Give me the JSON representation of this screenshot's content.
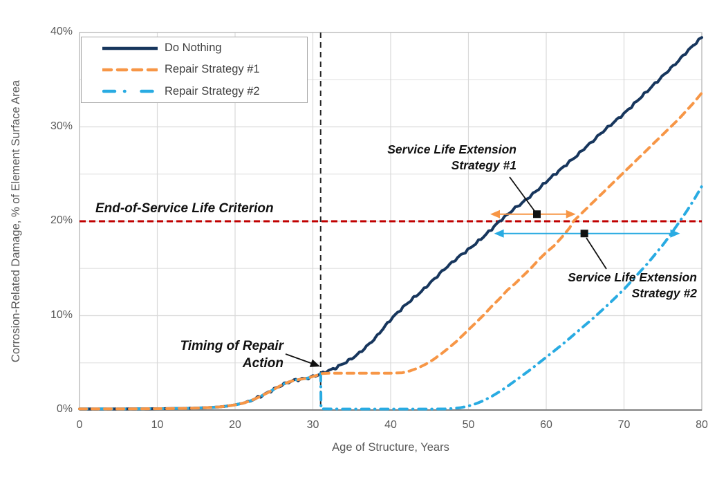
{
  "chart_data": {
    "type": "line",
    "title": "",
    "xlabel": "Age of Structure, Years",
    "ylabel": "Corrosion-Related Damage, % of Element Surface Area",
    "xlim": [
      0,
      80
    ],
    "ylim": [
      0,
      40
    ],
    "grid": "on",
    "legend_position": "top-left",
    "x_tick_values": [
      0,
      10,
      20,
      30,
      40,
      50,
      60,
      70,
      80
    ],
    "x_tick_labels": [
      "0",
      "10",
      "20",
      "30",
      "40",
      "50",
      "60",
      "70",
      "80"
    ],
    "y_tick_values": [
      0,
      10,
      20,
      30,
      40
    ],
    "y_tick_labels": [
      "0%",
      "10%",
      "20%",
      "30%",
      "40%"
    ],
    "series": [
      {
        "name": "Do Nothing",
        "color": "#17365D",
        "style": "solid",
        "wiggle": true,
        "points": [
          [
            0,
            0.12
          ],
          [
            6,
            0.12
          ],
          [
            10,
            0.14
          ],
          [
            13,
            0.17
          ],
          [
            15,
            0.2
          ],
          [
            17,
            0.28
          ],
          [
            18,
            0.33
          ],
          [
            19,
            0.42
          ],
          [
            20,
            0.55
          ],
          [
            21,
            0.72
          ],
          [
            22,
            0.98
          ],
          [
            23,
            1.35
          ],
          [
            24,
            1.75
          ],
          [
            25,
            2.2
          ],
          [
            26,
            2.65
          ],
          [
            27,
            3.0
          ],
          [
            27.8,
            3.18
          ],
          [
            28.6,
            3.28
          ],
          [
            29.4,
            3.4
          ],
          [
            30,
            3.55
          ],
          [
            30.6,
            3.7
          ],
          [
            31,
            3.85
          ],
          [
            32,
            4.15
          ],
          [
            33,
            4.5
          ],
          [
            34,
            4.95
          ],
          [
            35,
            5.45
          ],
          [
            36,
            6.05
          ],
          [
            37,
            6.8
          ],
          [
            38,
            7.6
          ],
          [
            39,
            8.6
          ],
          [
            40,
            9.6
          ],
          [
            41,
            10.4
          ],
          [
            42,
            11.2
          ],
          [
            43,
            11.9
          ],
          [
            44,
            12.6
          ],
          [
            45,
            13.4
          ],
          [
            46,
            14.2
          ],
          [
            47,
            15.0
          ],
          [
            48,
            15.7
          ],
          [
            49,
            16.4
          ],
          [
            50,
            17.0
          ],
          [
            51,
            17.7
          ],
          [
            52,
            18.4
          ],
          [
            53,
            19.2
          ],
          [
            54,
            20.0
          ],
          [
            55,
            20.7
          ],
          [
            56,
            21.4
          ],
          [
            57,
            22.0
          ],
          [
            58,
            22.7
          ],
          [
            59,
            23.4
          ],
          [
            60,
            24.2
          ],
          [
            61,
            24.9
          ],
          [
            62,
            25.6
          ],
          [
            63,
            26.3
          ],
          [
            64,
            27.0
          ],
          [
            65,
            27.8
          ],
          [
            66,
            28.5
          ],
          [
            67,
            29.3
          ],
          [
            68,
            30.0
          ],
          [
            69,
            30.7
          ],
          [
            70,
            31.4
          ],
          [
            71,
            32.2
          ],
          [
            72,
            33.0
          ],
          [
            73,
            33.8
          ],
          [
            74,
            34.6
          ],
          [
            75,
            35.4
          ],
          [
            76,
            36.2
          ],
          [
            77,
            37.0
          ],
          [
            78,
            37.9
          ],
          [
            79,
            38.7
          ],
          [
            80,
            39.5
          ]
        ]
      },
      {
        "name": "Repair Strategy #1",
        "color": "#F79646",
        "style": "dashed",
        "wiggle": false,
        "points": [
          [
            0,
            0.12
          ],
          [
            6,
            0.12
          ],
          [
            10,
            0.14
          ],
          [
            13,
            0.17
          ],
          [
            15,
            0.2
          ],
          [
            17,
            0.28
          ],
          [
            18,
            0.33
          ],
          [
            19,
            0.42
          ],
          [
            20,
            0.55
          ],
          [
            21,
            0.72
          ],
          [
            22,
            0.98
          ],
          [
            23,
            1.35
          ],
          [
            24,
            1.75
          ],
          [
            25,
            2.2
          ],
          [
            26,
            2.65
          ],
          [
            27,
            3.0
          ],
          [
            27.8,
            3.18
          ],
          [
            28.6,
            3.28
          ],
          [
            29.4,
            3.4
          ],
          [
            30,
            3.55
          ],
          [
            30.6,
            3.7
          ],
          [
            31,
            3.85
          ],
          [
            32,
            3.9
          ],
          [
            34,
            3.9
          ],
          [
            36,
            3.9
          ],
          [
            38,
            3.9
          ],
          [
            40,
            3.9
          ],
          [
            41.5,
            3.95
          ],
          [
            42.5,
            4.15
          ],
          [
            43.5,
            4.45
          ],
          [
            44.5,
            4.85
          ],
          [
            45.5,
            5.35
          ],
          [
            46.5,
            5.95
          ],
          [
            47.5,
            6.6
          ],
          [
            48.5,
            7.3
          ],
          [
            50,
            8.5
          ],
          [
            51,
            9.3
          ],
          [
            52,
            10.1
          ],
          [
            53,
            11.0
          ],
          [
            54,
            11.8
          ],
          [
            55,
            12.7
          ],
          [
            56,
            13.4
          ],
          [
            57,
            14.2
          ],
          [
            58,
            15.0
          ],
          [
            59,
            15.9
          ],
          [
            60,
            16.7
          ],
          [
            61,
            17.4
          ],
          [
            62,
            18.3
          ],
          [
            63,
            19.3
          ],
          [
            63.5,
            20.0
          ],
          [
            64,
            20.4
          ],
          [
            65,
            21.2
          ],
          [
            66,
            22.0
          ],
          [
            67,
            22.8
          ],
          [
            68,
            23.6
          ],
          [
            69,
            24.4
          ],
          [
            70,
            25.2
          ],
          [
            71,
            26.0
          ],
          [
            72,
            26.8
          ],
          [
            73,
            27.6
          ],
          [
            74,
            28.4
          ],
          [
            75,
            29.2
          ],
          [
            76,
            30.0
          ],
          [
            77,
            30.8
          ],
          [
            78,
            31.7
          ],
          [
            79,
            32.6
          ],
          [
            80,
            33.6
          ]
        ]
      },
      {
        "name": "Repair Strategy #2",
        "color": "#29ABE2",
        "style": "dashdot",
        "wiggle": false,
        "points": [
          [
            0,
            0.12
          ],
          [
            6,
            0.12
          ],
          [
            10,
            0.14
          ],
          [
            13,
            0.17
          ],
          [
            15,
            0.2
          ],
          [
            17,
            0.28
          ],
          [
            18,
            0.33
          ],
          [
            19,
            0.42
          ],
          [
            20,
            0.55
          ],
          [
            21,
            0.72
          ],
          [
            22,
            0.98
          ],
          [
            23,
            1.35
          ],
          [
            24,
            1.75
          ],
          [
            25,
            2.2
          ],
          [
            26,
            2.65
          ],
          [
            27,
            3.0
          ],
          [
            27.8,
            3.18
          ],
          [
            28.6,
            3.28
          ],
          [
            29.4,
            3.4
          ],
          [
            30,
            3.55
          ],
          [
            30.6,
            3.7
          ],
          [
            31,
            3.85
          ],
          [
            31.05,
            0.12
          ],
          [
            34,
            0.1
          ],
          [
            38,
            0.1
          ],
          [
            42,
            0.1
          ],
          [
            45,
            0.1
          ],
          [
            47,
            0.12
          ],
          [
            48,
            0.16
          ],
          [
            49,
            0.25
          ],
          [
            50,
            0.42
          ],
          [
            51,
            0.68
          ],
          [
            52,
            1.02
          ],
          [
            53,
            1.45
          ],
          [
            54,
            1.95
          ],
          [
            55,
            2.5
          ],
          [
            56,
            3.1
          ],
          [
            57,
            3.7
          ],
          [
            58,
            4.3
          ],
          [
            59,
            4.95
          ],
          [
            60,
            5.6
          ],
          [
            61,
            6.25
          ],
          [
            62,
            6.9
          ],
          [
            63,
            7.6
          ],
          [
            64,
            8.3
          ],
          [
            65,
            9.0
          ],
          [
            66,
            9.7
          ],
          [
            67,
            10.45
          ],
          [
            68,
            11.2
          ],
          [
            69,
            12.0
          ],
          [
            70,
            12.8
          ],
          [
            71,
            13.7
          ],
          [
            72,
            14.6
          ],
          [
            73,
            15.5
          ],
          [
            74,
            16.5
          ],
          [
            75,
            17.5
          ],
          [
            76,
            18.6
          ],
          [
            77,
            19.8
          ],
          [
            78,
            21.0
          ],
          [
            79,
            22.3
          ],
          [
            80,
            23.7
          ]
        ]
      }
    ],
    "reference_lines": {
      "end_of_service": {
        "label": "End-of-Service Life Criterion",
        "value_pct": 20,
        "color": "#C00000"
      },
      "repair_timing": {
        "label_line1": "Timing of Repair",
        "label_line2": "Action",
        "value_year": 31,
        "color": "#262626"
      }
    },
    "annotations": {
      "sle1": {
        "line1": "Service Life Extension",
        "line2": "Strategy #1",
        "arrow_from_year": 52.8,
        "arrow_to_year": 63.8,
        "arrow_pct": 20.75,
        "marker_year": 58.8,
        "color": "#F79646"
      },
      "sle2": {
        "line1": "Service Life Extension",
        "line2": "Strategy #2",
        "arrow_from_year": 53.3,
        "arrow_to_year": 77.2,
        "arrow_pct": 18.7,
        "marker_year": 64.9,
        "color": "#29ABE2"
      }
    }
  }
}
